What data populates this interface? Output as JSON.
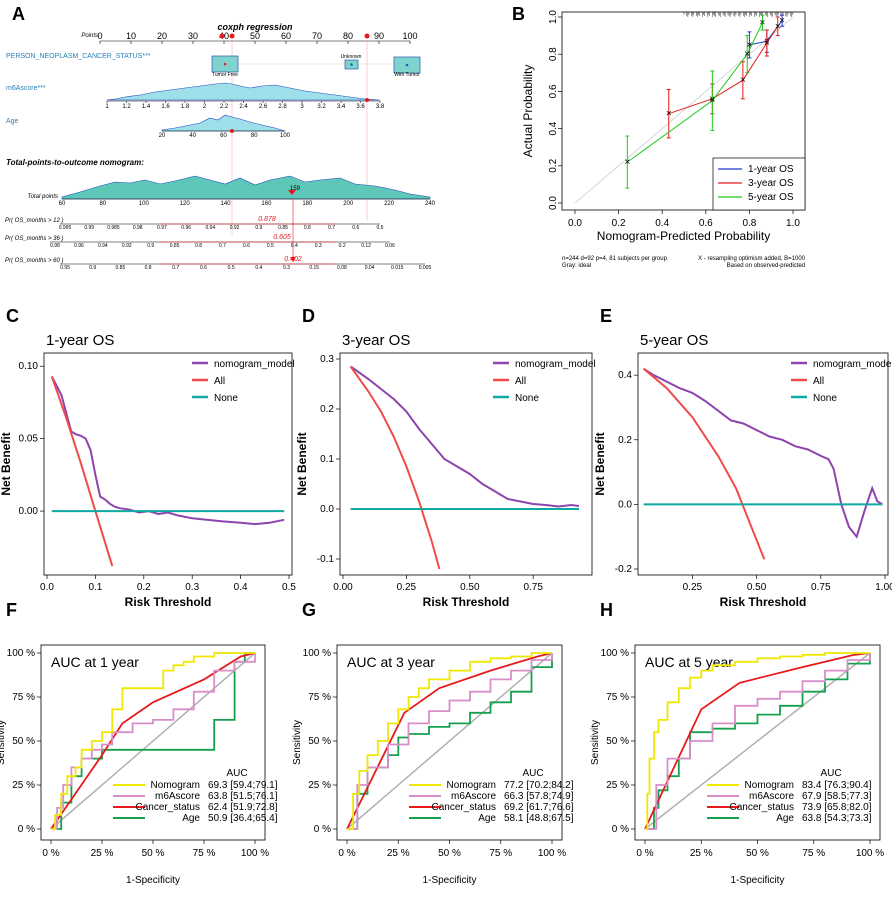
{
  "panel_labels": [
    "A",
    "B",
    "C",
    "D",
    "E",
    "F",
    "G",
    "H"
  ],
  "chart_data": [
    {
      "id": "A",
      "type": "nomogram",
      "title": "coxph regression",
      "points_label": "Points",
      "points_ticks": [
        "0",
        "10",
        "20",
        "30",
        "40",
        "50",
        "60",
        "70",
        "80",
        "90",
        "100"
      ],
      "variables": [
        {
          "label": "PERSON_NEOPLASM_CANCER_STATUS***",
          "levels": [
            "Tumor Free",
            "Unknown",
            "With Tumor"
          ]
        },
        {
          "label": "m6Ascore***",
          "ticks": [
            "1",
            "1.2",
            "1.4",
            "1.6",
            "1.8",
            "2",
            "2.2",
            "2.4",
            "2.6",
            "2.8",
            "3",
            "3.2",
            "3.4",
            "3.6",
            "3.8"
          ]
        },
        {
          "label": "Age",
          "ticks": [
            "20",
            "40",
            "60",
            "80",
            "100"
          ]
        }
      ],
      "subtitle": "Total-points-to-outcome nomogram:",
      "total_points_label": "Total points",
      "total_points_ticks": [
        "60",
        "80",
        "100",
        "120",
        "140",
        "160",
        "180",
        "200",
        "220",
        "240"
      ],
      "total_points_value": "159",
      "outcomes": [
        {
          "label": "Pr( OS_months > 12 )",
          "value": "0.878",
          "ticks": [
            "0.995",
            "0.99",
            "0.985",
            "0.98",
            "0.97",
            "0.96",
            "0.94",
            "0.92",
            "0.9",
            "0.85",
            "0.8",
            "0.7",
            "0.6",
            "0.5"
          ]
        },
        {
          "label": "Pr( OS_months > 36 )",
          "value": "0.605",
          "ticks": [
            "0.98",
            "0.96",
            "0.94",
            "0.92",
            "0.9",
            "0.85",
            "0.8",
            "0.7",
            "0.6",
            "0.5",
            "0.4",
            "0.3",
            "0.2",
            "0.12",
            "0.06"
          ]
        },
        {
          "label": "Pr( OS_months > 60 )",
          "value": "0.402",
          "ticks": [
            "0.95",
            "0.9",
            "0.85",
            "0.8",
            "0.7",
            "0.6",
            "0.5",
            "0.4",
            "0.3",
            "0.15",
            "0.08",
            "0.04",
            "0.015",
            "0.005"
          ]
        }
      ]
    },
    {
      "id": "B",
      "type": "line",
      "xlabel": "Nomogram-Predicted Probability",
      "ylabel": "Actual Probability",
      "xlim": [
        0.0,
        1.0
      ],
      "ylim": [
        0.0,
        1.0
      ],
      "xticks": [
        "0.0",
        "0.2",
        "0.4",
        "0.6",
        "0.8",
        "1.0"
      ],
      "yticks": [
        "0.0",
        "0.2",
        "0.4",
        "0.6",
        "0.8",
        "1.0"
      ],
      "series": [
        {
          "name": "1-year OS",
          "color": "#1f3bd1",
          "x": [
            0.8,
            0.88,
            0.95
          ],
          "y": [
            0.85,
            0.87,
            0.98
          ],
          "err": [
            0.07,
            0.06,
            0.03
          ]
        },
        {
          "name": "3-year OS",
          "color": "#e8191b",
          "x": [
            0.43,
            0.63,
            0.77,
            0.88,
            0.93
          ],
          "y": [
            0.48,
            0.56,
            0.66,
            0.86,
            0.95
          ],
          "err": [
            0.13,
            0.08,
            0.1,
            0.07,
            0.05
          ]
        },
        {
          "name": "5-year OS",
          "color": "#1ec81e",
          "x": [
            0.24,
            0.63,
            0.79,
            0.86
          ],
          "y": [
            0.22,
            0.55,
            0.8,
            0.97
          ],
          "err": [
            0.14,
            0.16,
            0.1,
            0.04
          ]
        }
      ],
      "footnote_left": [
        "n=244 d=92 p=4, 81 subjects per group",
        "Gray: ideal"
      ],
      "footnote_right": [
        "X - resampling optimism added, B=1000",
        "Based on observed-predicted"
      ]
    },
    {
      "id": "C",
      "type": "line",
      "title": "1-year OS",
      "xlabel": "Risk Threshold",
      "ylabel": "Net Benefit",
      "xlim": [
        0.0,
        0.5
      ],
      "ylim": [
        -0.04,
        0.105
      ],
      "xticks": [
        "0.0",
        "0.1",
        "0.2",
        "0.3",
        "0.4",
        "0.5"
      ],
      "yticks": [
        "0.00",
        "0.05",
        "0.10"
      ],
      "legend": [
        "nomogram_model",
        "All",
        "None"
      ],
      "series": [
        {
          "name": "nomogram_model",
          "x": [
            0.01,
            0.03,
            0.05,
            0.06,
            0.07,
            0.08,
            0.09,
            0.1,
            0.11,
            0.12,
            0.13,
            0.14,
            0.15,
            0.17,
            0.19,
            0.21,
            0.23,
            0.25,
            0.27,
            0.3,
            0.33,
            0.36,
            0.4,
            0.43,
            0.46,
            0.49
          ],
          "y": [
            0.093,
            0.08,
            0.055,
            0.053,
            0.052,
            0.05,
            0.042,
            0.025,
            0.01,
            0.008,
            0.005,
            0.003,
            0.002,
            0.001,
            -0.001,
            0.0,
            -0.002,
            -0.001,
            -0.003,
            -0.005,
            -0.006,
            -0.007,
            -0.008,
            -0.009,
            -0.008,
            -0.006
          ]
        },
        {
          "name": "All",
          "x": [
            0.01,
            0.04,
            0.07,
            0.1,
            0.135
          ],
          "y": [
            0.093,
            0.064,
            0.033,
            0.0,
            -0.038
          ]
        },
        {
          "name": "None",
          "x": [
            0.01,
            0.49
          ],
          "y": [
            0.0,
            0.0
          ]
        }
      ]
    },
    {
      "id": "D",
      "type": "line",
      "title": "3-year OS",
      "xlabel": "Risk Threshold",
      "ylabel": "Net Benefit",
      "xlim": [
        0.0,
        0.97
      ],
      "ylim": [
        -0.12,
        0.3
      ],
      "xticks": [
        "0.00",
        "0.25",
        "0.50",
        "0.75"
      ],
      "yticks": [
        "-0.1",
        "0.0",
        "0.1",
        "0.2",
        "0.3"
      ],
      "legend": [
        "nomogram_model",
        "All",
        "None"
      ],
      "series": [
        {
          "name": "nomogram_model",
          "x": [
            0.03,
            0.1,
            0.15,
            0.2,
            0.25,
            0.3,
            0.35,
            0.4,
            0.45,
            0.5,
            0.55,
            0.6,
            0.65,
            0.7,
            0.75,
            0.8,
            0.85,
            0.9,
            0.93
          ],
          "y": [
            0.285,
            0.26,
            0.24,
            0.22,
            0.195,
            0.16,
            0.13,
            0.1,
            0.085,
            0.07,
            0.05,
            0.035,
            0.02,
            0.015,
            0.01,
            0.008,
            0.005,
            0.008,
            0.006
          ]
        },
        {
          "name": "All",
          "x": [
            0.03,
            0.1,
            0.15,
            0.2,
            0.25,
            0.3,
            0.35,
            0.38
          ],
          "y": [
            0.285,
            0.235,
            0.195,
            0.145,
            0.085,
            0.015,
            -0.065,
            -0.12
          ]
        },
        {
          "name": "None",
          "x": [
            0.03,
            0.93
          ],
          "y": [
            0.0,
            0.0
          ]
        }
      ]
    },
    {
      "id": "E",
      "type": "line",
      "title": "5-year OS",
      "xlabel": "Risk Threshold",
      "ylabel": "Net Benefit",
      "xlim": [
        0.05,
        1.0
      ],
      "ylim": [
        -0.2,
        0.45
      ],
      "xticks": [
        "0.25",
        "0.50",
        "0.75",
        "1.00"
      ],
      "yticks": [
        "-0.2",
        "0.0",
        "0.2",
        "0.4"
      ],
      "legend": [
        "nomogram_model",
        "All",
        "None"
      ],
      "series": [
        {
          "name": "nomogram_model",
          "x": [
            0.06,
            0.1,
            0.15,
            0.2,
            0.25,
            0.3,
            0.35,
            0.4,
            0.45,
            0.5,
            0.55,
            0.6,
            0.65,
            0.7,
            0.75,
            0.78,
            0.8,
            0.83,
            0.86,
            0.89,
            0.92,
            0.95,
            0.97,
            0.99
          ],
          "y": [
            0.42,
            0.4,
            0.38,
            0.36,
            0.345,
            0.32,
            0.29,
            0.26,
            0.25,
            0.23,
            0.21,
            0.2,
            0.18,
            0.17,
            0.15,
            0.14,
            0.11,
            0.0,
            -0.07,
            -0.1,
            -0.02,
            0.05,
            0.01,
            0.0
          ]
        },
        {
          "name": "All",
          "x": [
            0.06,
            0.15,
            0.25,
            0.35,
            0.42,
            0.48,
            0.53
          ],
          "y": [
            0.42,
            0.36,
            0.27,
            0.15,
            0.05,
            -0.07,
            -0.17
          ]
        },
        {
          "name": "None",
          "x": [
            0.06,
            0.99
          ],
          "y": [
            0.0,
            0.0
          ]
        }
      ]
    },
    {
      "id": "F",
      "type": "line",
      "title": "AUC at 1 year",
      "xlabel": "1-Specificity",
      "ylabel": "Sensitivity",
      "xticks": [
        "0 %",
        "25 %",
        "50 %",
        "75 %",
        "100 %"
      ],
      "yticks": [
        "0 %",
        "25 %",
        "50 %",
        "75 %",
        "100 %"
      ],
      "auc_header": "AUC",
      "series": [
        {
          "name": "Nomogram",
          "auc": "69.3 [59.4;79.1]",
          "color": "#f0e800",
          "x": [
            0,
            0.02,
            0.05,
            0.08,
            0.12,
            0.15,
            0.2,
            0.25,
            0.3,
            0.35,
            0.4,
            0.5,
            0.55,
            0.6,
            0.65,
            0.7,
            0.8,
            0.9,
            1.0
          ],
          "y": [
            0,
            0.08,
            0.2,
            0.3,
            0.35,
            0.45,
            0.5,
            0.55,
            0.68,
            0.8,
            0.8,
            0.8,
            0.9,
            0.93,
            0.95,
            0.98,
            1.0,
            1.0,
            1.0
          ]
        },
        {
          "name": "m6Ascore",
          "auc": "63.8 [51.5;76.1]",
          "color": "#d98ec8",
          "x": [
            0,
            0.03,
            0.06,
            0.1,
            0.15,
            0.2,
            0.25,
            0.3,
            0.4,
            0.5,
            0.6,
            0.7,
            0.8,
            0.9,
            1.0
          ],
          "y": [
            0,
            0.12,
            0.25,
            0.35,
            0.4,
            0.45,
            0.48,
            0.55,
            0.6,
            0.62,
            0.68,
            0.78,
            0.9,
            0.95,
            1.0
          ]
        },
        {
          "name": "Cancer_status",
          "auc": "62.4 [51.9;72.8]",
          "color": "#e8191b",
          "x": [
            0,
            0.25,
            0.35,
            0.5,
            0.75,
            0.93,
            1.0
          ],
          "y": [
            0,
            0.42,
            0.6,
            0.72,
            0.85,
            0.98,
            1.0
          ]
        },
        {
          "name": "Age",
          "auc": "50.9 [36.4;65.4]",
          "color": "#15a050",
          "x": [
            0,
            0.05,
            0.1,
            0.15,
            0.25,
            0.35,
            0.45,
            0.55,
            0.65,
            0.75,
            0.8,
            0.85,
            0.9,
            0.95,
            1.0
          ],
          "y": [
            0,
            0.15,
            0.3,
            0.4,
            0.45,
            0.45,
            0.45,
            0.45,
            0.45,
            0.45,
            0.62,
            0.62,
            0.95,
            1.0,
            1.0
          ]
        }
      ]
    },
    {
      "id": "G",
      "type": "line",
      "title": "AUC at 3 year",
      "xlabel": "1-Specificity",
      "ylabel": "Sensitivity",
      "xticks": [
        "0 %",
        "25 %",
        "50 %",
        "75 %",
        "100 %"
      ],
      "yticks": [
        "0 %",
        "25 %",
        "50 %",
        "75 %",
        "100 %"
      ],
      "auc_header": "AUC",
      "series": [
        {
          "name": "Nomogram",
          "auc": "77.2 [70.2;84.2]",
          "color": "#f0e800",
          "x": [
            0,
            0.03,
            0.06,
            0.1,
            0.15,
            0.2,
            0.25,
            0.3,
            0.35,
            0.4,
            0.5,
            0.6,
            0.7,
            0.8,
            0.9,
            1.0
          ],
          "y": [
            0,
            0.2,
            0.33,
            0.42,
            0.5,
            0.6,
            0.68,
            0.75,
            0.8,
            0.85,
            0.9,
            0.95,
            0.97,
            0.98,
            1.0,
            1.0
          ]
        },
        {
          "name": "m6Ascore",
          "auc": "66.3 [57.8;74.9]",
          "color": "#d98ec8",
          "x": [
            0,
            0.05,
            0.1,
            0.2,
            0.3,
            0.4,
            0.5,
            0.6,
            0.7,
            0.8,
            0.9,
            1.0
          ],
          "y": [
            0,
            0.25,
            0.35,
            0.48,
            0.6,
            0.67,
            0.73,
            0.78,
            0.85,
            0.9,
            0.96,
            1.0
          ]
        },
        {
          "name": "Cancer_status",
          "auc": "69.2 [61.7;76.6]",
          "color": "#e8191b",
          "x": [
            0,
            0.28,
            0.45,
            0.7,
            0.93,
            1.0
          ],
          "y": [
            0,
            0.66,
            0.8,
            0.9,
            0.98,
            1.0
          ]
        },
        {
          "name": "Age",
          "auc": "58.1 [48.8;67.5]",
          "color": "#15a050",
          "x": [
            0,
            0.05,
            0.1,
            0.2,
            0.25,
            0.3,
            0.4,
            0.5,
            0.6,
            0.7,
            0.8,
            0.9,
            1.0
          ],
          "y": [
            0,
            0.2,
            0.35,
            0.42,
            0.52,
            0.54,
            0.58,
            0.6,
            0.66,
            0.72,
            0.78,
            0.92,
            1.0
          ]
        }
      ]
    },
    {
      "id": "H",
      "type": "line",
      "title": "AUC at 5 year",
      "xlabel": "1-Specificity",
      "ylabel": "Sensitivity",
      "xticks": [
        "0 %",
        "25 %",
        "50 %",
        "75 %",
        "100 %"
      ],
      "yticks": [
        "0 %",
        "25 %",
        "50 %",
        "75 %",
        "100 %"
      ],
      "auc_header": "AUC",
      "series": [
        {
          "name": "Nomogram",
          "auc": "83.4 [76.3;90.4]",
          "color": "#f0e800",
          "x": [
            0,
            0.01,
            0.02,
            0.04,
            0.06,
            0.1,
            0.15,
            0.2,
            0.25,
            0.3,
            0.4,
            0.5,
            0.6,
            0.7,
            0.8,
            0.9,
            1.0
          ],
          "y": [
            0,
            0.2,
            0.4,
            0.55,
            0.62,
            0.72,
            0.8,
            0.86,
            0.9,
            0.93,
            0.95,
            0.97,
            0.98,
            0.99,
            1.0,
            1.0,
            1.0
          ]
        },
        {
          "name": "m6Ascore",
          "auc": "67.9 [58.5;77.3]",
          "color": "#d98ec8",
          "x": [
            0,
            0.05,
            0.1,
            0.2,
            0.3,
            0.4,
            0.5,
            0.6,
            0.7,
            0.8,
            0.9,
            1.0
          ],
          "y": [
            0,
            0.25,
            0.4,
            0.5,
            0.6,
            0.7,
            0.74,
            0.78,
            0.84,
            0.9,
            0.96,
            1.0
          ]
        },
        {
          "name": "Cancer_status",
          "auc": "73.9 [65.8;82.0]",
          "color": "#e8191b",
          "x": [
            0,
            0.25,
            0.42,
            0.7,
            0.93,
            1.0
          ],
          "y": [
            0,
            0.68,
            0.83,
            0.92,
            0.99,
            1.0
          ]
        },
        {
          "name": "Age",
          "auc": "63.8 [54.3;73.3]",
          "color": "#15a050",
          "x": [
            0,
            0.04,
            0.06,
            0.1,
            0.15,
            0.2,
            0.3,
            0.4,
            0.5,
            0.6,
            0.7,
            0.8,
            0.9,
            1.0
          ],
          "y": [
            0,
            0.12,
            0.22,
            0.3,
            0.4,
            0.55,
            0.57,
            0.6,
            0.65,
            0.7,
            0.78,
            0.85,
            0.94,
            1.0
          ]
        }
      ]
    }
  ]
}
